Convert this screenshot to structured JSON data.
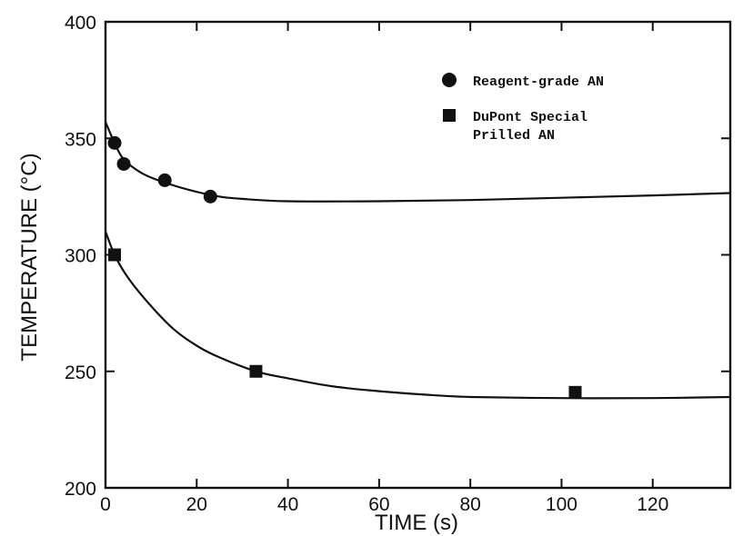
{
  "chart_data": {
    "type": "scatter",
    "title": "",
    "xlabel": "TIME (s)",
    "ylabel": "TEMPERATURE (°C)",
    "xlim": [
      0,
      137
    ],
    "ylim": [
      200,
      400
    ],
    "x_ticks": [
      0,
      20,
      40,
      60,
      80,
      100,
      120
    ],
    "y_ticks": [
      200,
      250,
      300,
      350,
      400
    ],
    "grid": false,
    "legend_position": "top-right",
    "series": [
      {
        "name": "Reagent-grade AN",
        "marker": "circle",
        "points": [
          {
            "x": 2,
            "y": 348
          },
          {
            "x": 4,
            "y": 339
          },
          {
            "x": 13,
            "y": 332
          },
          {
            "x": 23,
            "y": 325
          }
        ],
        "fit_curve": [
          {
            "x": 0,
            "y": 357
          },
          {
            "x": 2,
            "y": 348
          },
          {
            "x": 4,
            "y": 341
          },
          {
            "x": 8,
            "y": 335
          },
          {
            "x": 13,
            "y": 331
          },
          {
            "x": 20,
            "y": 327
          },
          {
            "x": 25,
            "y": 325
          },
          {
            "x": 30,
            "y": 324
          },
          {
            "x": 40,
            "y": 323
          },
          {
            "x": 60,
            "y": 323
          },
          {
            "x": 80,
            "y": 323.5
          },
          {
            "x": 100,
            "y": 324.5
          },
          {
            "x": 120,
            "y": 325.5
          },
          {
            "x": 137,
            "y": 326.5
          }
        ]
      },
      {
        "name": "DuPont Special Prilled AN",
        "marker": "square",
        "points": [
          {
            "x": 2,
            "y": 300
          },
          {
            "x": 33,
            "y": 250
          },
          {
            "x": 103,
            "y": 241
          }
        ],
        "fit_curve": [
          {
            "x": 0,
            "y": 310
          },
          {
            "x": 2,
            "y": 300
          },
          {
            "x": 5,
            "y": 290
          },
          {
            "x": 10,
            "y": 278
          },
          {
            "x": 15,
            "y": 268
          },
          {
            "x": 20,
            "y": 261
          },
          {
            "x": 25,
            "y": 256
          },
          {
            "x": 33,
            "y": 250
          },
          {
            "x": 40,
            "y": 247
          },
          {
            "x": 50,
            "y": 243.5
          },
          {
            "x": 60,
            "y": 241.5
          },
          {
            "x": 70,
            "y": 240
          },
          {
            "x": 80,
            "y": 239
          },
          {
            "x": 100,
            "y": 238.5
          },
          {
            "x": 120,
            "y": 238.5
          },
          {
            "x": 137,
            "y": 239
          }
        ]
      }
    ]
  }
}
